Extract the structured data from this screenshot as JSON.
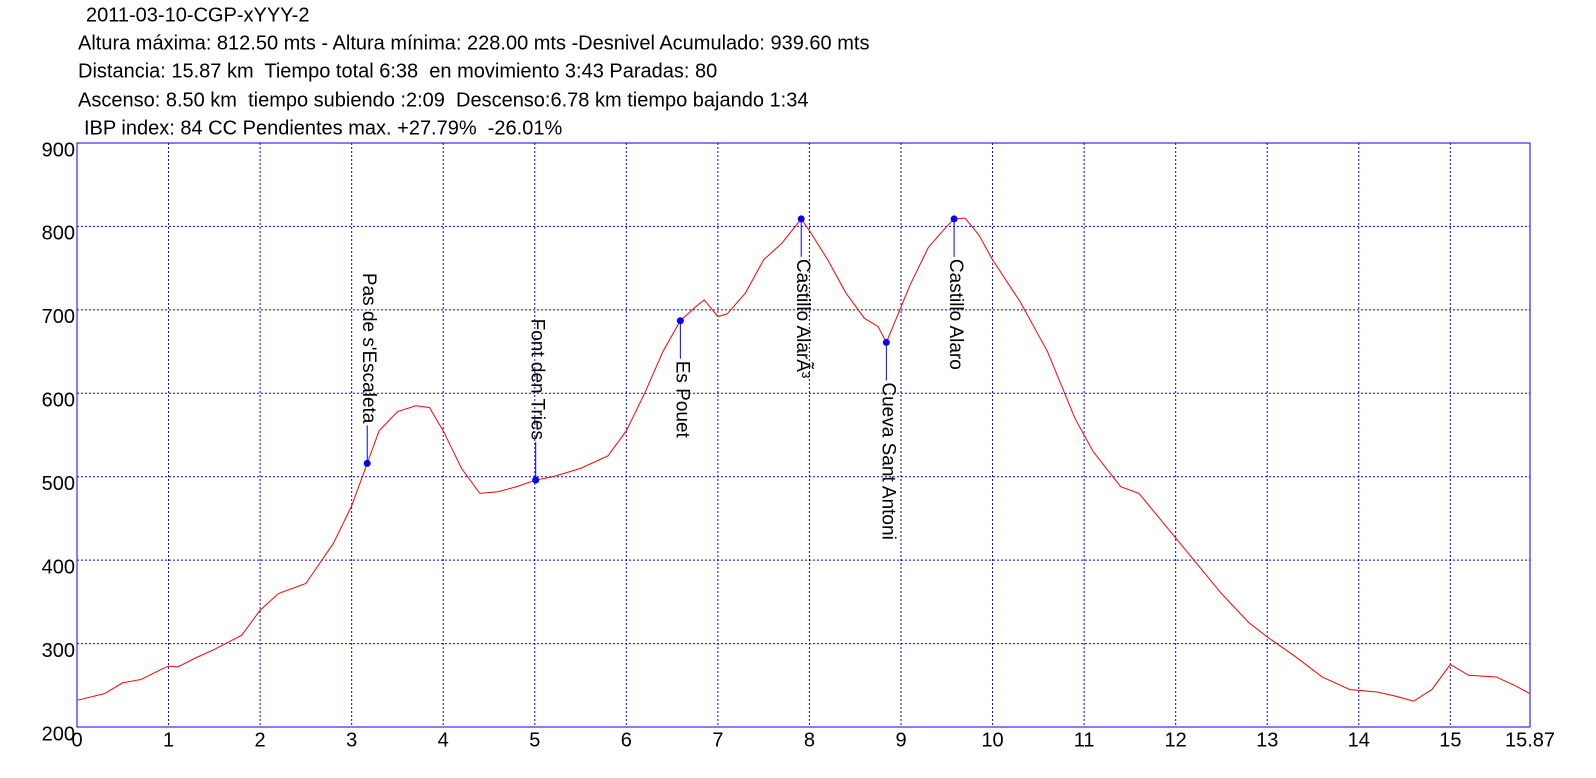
{
  "chart_data": {
    "type": "line",
    "title": "2011-03-10-CGP-xYYY-2",
    "subtitle_lines": [
      "Altura máxima: 812.50 mts - Altura mínima: 228.00 mts -Desnivel Acumulado: 939.60 mts",
      "Distancia: 15.87 km  Tiempo total 6:38  en movimiento 3:43 Paradas: 80",
      "Ascenso: 8.50 km  tiempo subiendo :2:09  Descenso:6.78 km tiempo bajando 1:34",
      "IBP index: 84 CC Pendientes max. +27.79%  -26.01%"
    ],
    "x": [
      0,
      0.3,
      0.5,
      0.7,
      0.9,
      1.0,
      1.1,
      1.3,
      1.5,
      1.8,
      2.0,
      2.2,
      2.5,
      2.8,
      3.0,
      3.17,
      3.3,
      3.5,
      3.7,
      3.85,
      4.0,
      4.2,
      4.4,
      4.6,
      4.8,
      5.01,
      5.2,
      5.5,
      5.8,
      6.0,
      6.2,
      6.4,
      6.59,
      6.75,
      6.85,
      7.0,
      7.1,
      7.3,
      7.5,
      7.7,
      7.91,
      8.0,
      8.2,
      8.4,
      8.6,
      8.75,
      8.84,
      8.95,
      9.1,
      9.3,
      9.5,
      9.58,
      9.7,
      9.85,
      10.0,
      10.3,
      10.6,
      10.9,
      11.1,
      11.4,
      11.6,
      11.9,
      12.2,
      12.5,
      12.8,
      13.0,
      13.3,
      13.6,
      13.9,
      14.2,
      14.4,
      14.6,
      14.8,
      15.0,
      15.2,
      15.5,
      15.7,
      15.87
    ],
    "series": [
      {
        "name": "Altura",
        "color": "#ff0000",
        "values": [
          232,
          240,
          253,
          257,
          268,
          273,
          272,
          283,
          293,
          310,
          340,
          360,
          372,
          420,
          465,
          516,
          555,
          578,
          585,
          583,
          555,
          510,
          480,
          482,
          488,
          496,
          500,
          510,
          525,
          555,
          600,
          650,
          687,
          703,
          712,
          692,
          695,
          720,
          760,
          780,
          809,
          795,
          760,
          720,
          690,
          680,
          661,
          690,
          730,
          775,
          800,
          809,
          810,
          790,
          760,
          710,
          650,
          570,
          530,
          488,
          480,
          440,
          400,
          360,
          325,
          308,
          285,
          260,
          245,
          242,
          237,
          231,
          245,
          275,
          262,
          260,
          250,
          240
        ]
      }
    ],
    "waypoints": [
      {
        "label": "Pas de s'Escaleta",
        "x": 3.17,
        "y": 516
      },
      {
        "label": "Font den Tries",
        "x": 5.01,
        "y": 496
      },
      {
        "label": "Es Pouet",
        "x": 6.59,
        "y": 687
      },
      {
        "label": "Castillo AlarÃ³",
        "x": 7.91,
        "y": 809
      },
      {
        "label": "Cueva Sant Antoni",
        "x": 8.84,
        "y": 661
      },
      {
        "label": "Castillo Alaro",
        "x": 9.58,
        "y": 809
      }
    ],
    "waypoint_color": "#0000ff",
    "xlim": [
      0,
      15.87
    ],
    "ylim": [
      200,
      900
    ],
    "xticks": [
      0,
      1,
      2,
      3,
      4,
      5,
      6,
      7,
      8,
      9,
      10,
      11,
      12,
      13,
      14,
      15,
      15.87
    ],
    "yticks": [
      200,
      300,
      400,
      500,
      600,
      700,
      800,
      900
    ],
    "grid": true,
    "axis_color": "#0000ff"
  }
}
